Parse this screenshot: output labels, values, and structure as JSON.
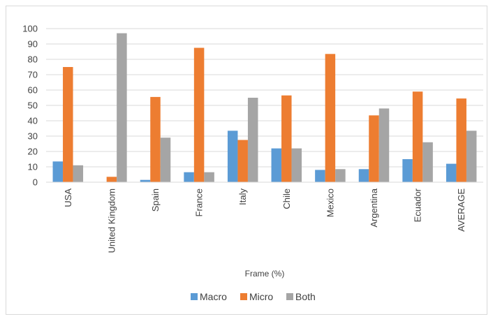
{
  "chart_data": {
    "type": "bar",
    "title": "",
    "xlabel": "Frame (%)",
    "ylabel": "",
    "ylim": [
      0,
      100
    ],
    "yticks": [
      0,
      10,
      20,
      30,
      40,
      50,
      60,
      70,
      80,
      90,
      100
    ],
    "grid": true,
    "legend_position": "bottom",
    "categories": [
      "USA",
      "United Kingdom",
      "Spain",
      "France",
      "Italy",
      "Chile",
      "Mexico",
      "Argentina",
      "Ecuador",
      "AVERAGE"
    ],
    "series": [
      {
        "name": "Macro",
        "color": "#5b9bd5",
        "values": [
          13.5,
          0,
          1.5,
          6.5,
          33.5,
          22,
          8,
          8.5,
          15,
          12
        ]
      },
      {
        "name": "Micro",
        "color": "#ed7d31",
        "values": [
          75,
          3.5,
          55.5,
          87.5,
          27.5,
          56.5,
          83.5,
          43.5,
          59,
          54.5
        ]
      },
      {
        "name": "Both",
        "color": "#a5a5a5",
        "values": [
          11,
          97,
          29,
          6.5,
          55,
          22,
          8.5,
          48,
          26,
          33.5
        ]
      }
    ]
  }
}
